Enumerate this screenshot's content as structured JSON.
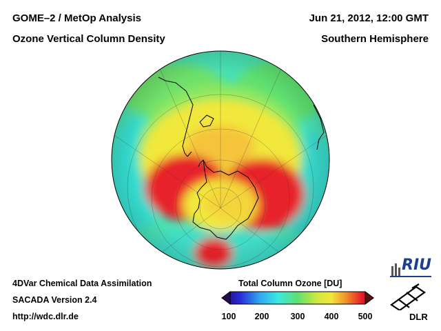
{
  "header": {
    "title_left_1": "GOME–2 / MetOp Analysis",
    "title_left_2": "Ozone Vertical Column Density",
    "title_right_1": "Jun 21, 2012, 12:00 GMT",
    "title_right_2": "Southern Hemisphere"
  },
  "footer": {
    "line_1": "4DVar Chemical Data Assimilation",
    "line_2": "SACADA Version 2.4",
    "line_3": "http://wdc.dlr.de"
  },
  "colorbar": {
    "title": "Total Column Ozone [DU]",
    "min": 100,
    "max": 500,
    "ticks": [
      "100",
      "200",
      "300",
      "400",
      "500"
    ]
  },
  "logos": {
    "riu": "RIU",
    "dlr": "DLR"
  },
  "map": {
    "projection": "orthographic, south pole centered",
    "colors": {
      "low": "#1a2a8c",
      "cyan": "#3de0d8",
      "green": "#5fe070",
      "yellow": "#f2e83a",
      "red": "#e8202a"
    }
  }
}
